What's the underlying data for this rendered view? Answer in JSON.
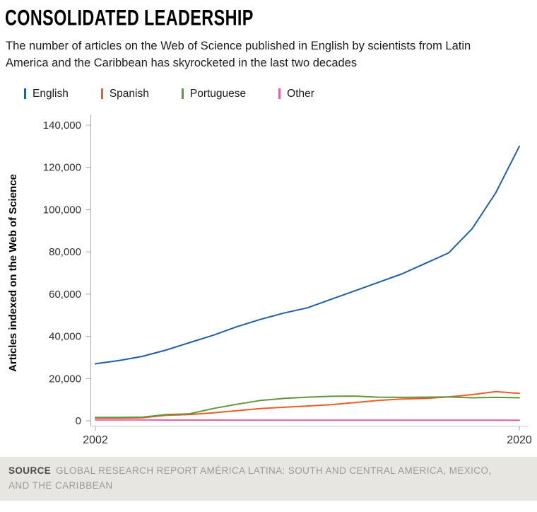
{
  "title": "CONSOLIDATED LEADERSHIP",
  "subtitle": "The number of articles on the Web of Science published in English by scientists from Latin America and the Caribbean has skyrocketed in the last two decades",
  "footer": {
    "source_label": "SOURCE",
    "source_text": "GLOBAL RESEARCH REPORT AMÉRICA LATINA: SOUTH AND CENTRAL AMERICA, MEXICO, AND THE CARIBBEAN"
  },
  "chart_data": {
    "type": "line",
    "title": "CONSOLIDATED LEADERSHIP",
    "xlabel": "",
    "ylabel": "Articles indexed on the Web of Science",
    "ylim": [
      0,
      140000
    ],
    "grid": false,
    "legend_position": "top",
    "x": [
      2002,
      2003,
      2004,
      2005,
      2006,
      2007,
      2008,
      2009,
      2010,
      2011,
      2012,
      2013,
      2014,
      2015,
      2016,
      2017,
      2018,
      2019,
      2020
    ],
    "series": [
      {
        "name": "English",
        "color": "#1f5fa8",
        "values": [
          27000,
          28500,
          30500,
          33500,
          37000,
          40500,
          44500,
          48000,
          51000,
          53500,
          57500,
          61500,
          65500,
          69500,
          74500,
          79500,
          91000,
          108000,
          130000
        ]
      },
      {
        "name": "Spanish",
        "color": "#ee5c26",
        "values": [
          1300,
          1300,
          1400,
          2600,
          2900,
          3800,
          4800,
          5800,
          6400,
          7000,
          7600,
          8600,
          9600,
          10300,
          10600,
          11300,
          12400,
          13800,
          13000
        ]
      },
      {
        "name": "Portuguese",
        "color": "#63953c",
        "values": [
          1600,
          1600,
          1700,
          2900,
          3300,
          5800,
          7800,
          9600,
          10600,
          11200,
          11600,
          11700,
          11200,
          11100,
          11200,
          11300,
          10900,
          11100,
          10900
        ]
      },
      {
        "name": "Other",
        "color": "#e95fa2",
        "values": [
          400,
          400,
          400,
          350,
          350,
          350,
          300,
          300,
          300,
          300,
          300,
          300,
          300,
          300,
          300,
          300,
          300,
          300,
          250
        ]
      }
    ],
    "yticks": [
      0,
      20000,
      40000,
      60000,
      80000,
      100000,
      120000,
      140000
    ],
    "ytick_labels": [
      "0",
      "20,000",
      "40,000",
      "60,000",
      "80,000",
      "100,000",
      "120,000",
      "140,000"
    ],
    "xticks": {
      "values": [
        2002,
        2020
      ],
      "labels": [
        "2002",
        "2020"
      ]
    }
  }
}
